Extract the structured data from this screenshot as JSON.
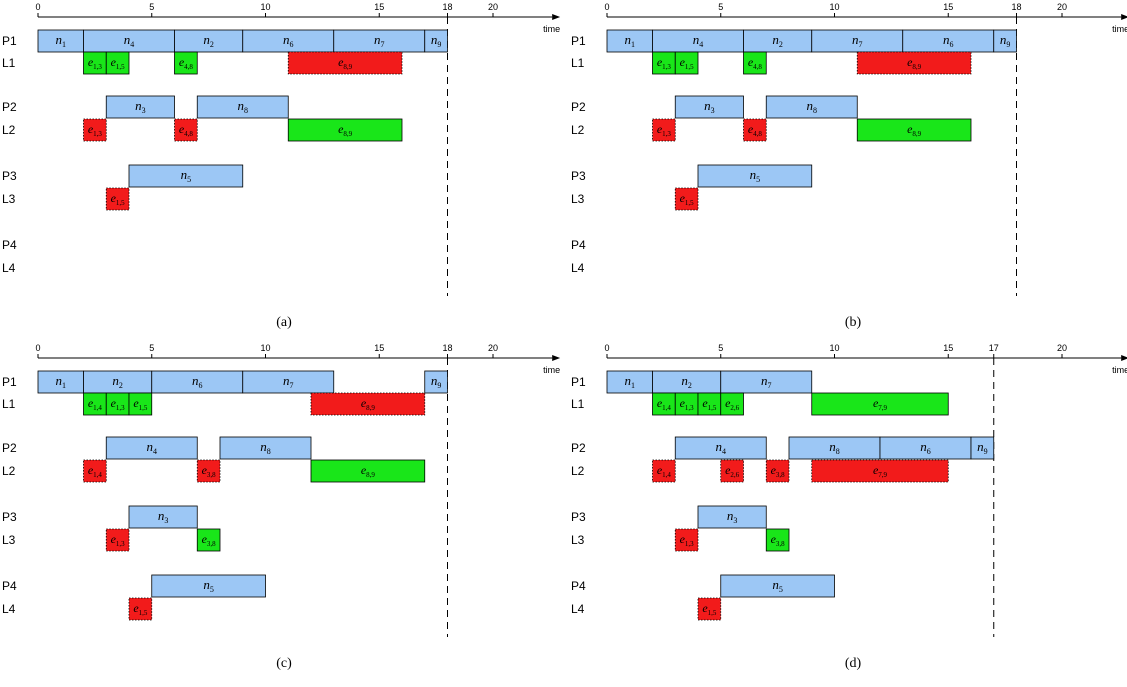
{
  "axis_label": "time",
  "panels": [
    {
      "caption": "(a)",
      "ticks": [
        0,
        5,
        10,
        15,
        18,
        20
      ],
      "makespan": 18,
      "rows": [
        {
          "id": "P1",
          "label": "P1",
          "kind": "proc",
          "tasks": [
            {
              "s": 0,
              "e": 2,
              "base": "n",
              "sub": "1"
            },
            {
              "s": 2,
              "e": 6,
              "base": "n",
              "sub": "4"
            },
            {
              "s": 6,
              "e": 9,
              "base": "n",
              "sub": "2"
            },
            {
              "s": 9,
              "e": 13,
              "base": "n",
              "sub": "6"
            },
            {
              "s": 13,
              "e": 17,
              "base": "n",
              "sub": "7"
            },
            {
              "s": 17,
              "e": 18,
              "base": "n",
              "sub": "9"
            }
          ]
        },
        {
          "id": "L1",
          "label": "L1",
          "kind": "link",
          "tasks": [
            {
              "s": 2,
              "e": 3,
              "base": "e",
              "sub": "1,3",
              "status": "send"
            },
            {
              "s": 3,
              "e": 4,
              "base": "e",
              "sub": "1,5",
              "status": "send"
            },
            {
              "s": 6,
              "e": 7,
              "base": "e",
              "sub": "4,8",
              "status": "send"
            },
            {
              "s": 11,
              "e": 16,
              "base": "e",
              "sub": "8,9",
              "status": "recv"
            }
          ]
        },
        {
          "id": "P2",
          "label": "P2",
          "kind": "proc",
          "tasks": [
            {
              "s": 3,
              "e": 6,
              "base": "n",
              "sub": "3"
            },
            {
              "s": 7,
              "e": 11,
              "base": "n",
              "sub": "8"
            }
          ]
        },
        {
          "id": "L2",
          "label": "L2",
          "kind": "link",
          "tasks": [
            {
              "s": 2,
              "e": 3,
              "base": "e",
              "sub": "1,3",
              "status": "recv"
            },
            {
              "s": 6,
              "e": 7,
              "base": "e",
              "sub": "4,8",
              "status": "recv"
            },
            {
              "s": 11,
              "e": 16,
              "base": "e",
              "sub": "8,9",
              "status": "send"
            }
          ]
        },
        {
          "id": "P3",
          "label": "P3",
          "kind": "proc",
          "tasks": [
            {
              "s": 4,
              "e": 9,
              "base": "n",
              "sub": "5"
            }
          ]
        },
        {
          "id": "L3",
          "label": "L3",
          "kind": "link",
          "tasks": [
            {
              "s": 3,
              "e": 4,
              "base": "e",
              "sub": "1,5",
              "status": "recv"
            }
          ]
        },
        {
          "id": "P4",
          "label": "P4",
          "kind": "proc",
          "tasks": []
        },
        {
          "id": "L4",
          "label": "L4",
          "kind": "link",
          "tasks": []
        }
      ]
    },
    {
      "caption": "(b)",
      "ticks": [
        0,
        5,
        10,
        15,
        18,
        20
      ],
      "makespan": 18,
      "rows": [
        {
          "id": "P1",
          "label": "P1",
          "kind": "proc",
          "tasks": [
            {
              "s": 0,
              "e": 2,
              "base": "n",
              "sub": "1"
            },
            {
              "s": 2,
              "e": 6,
              "base": "n",
              "sub": "4"
            },
            {
              "s": 6,
              "e": 9,
              "base": "n",
              "sub": "2"
            },
            {
              "s": 9,
              "e": 13,
              "base": "n",
              "sub": "7"
            },
            {
              "s": 13,
              "e": 17,
              "base": "n",
              "sub": "6"
            },
            {
              "s": 17,
              "e": 18,
              "base": "n",
              "sub": "9"
            }
          ]
        },
        {
          "id": "L1",
          "label": "L1",
          "kind": "link",
          "tasks": [
            {
              "s": 2,
              "e": 3,
              "base": "e",
              "sub": "1,3",
              "status": "send"
            },
            {
              "s": 3,
              "e": 4,
              "base": "e",
              "sub": "1,5",
              "status": "send"
            },
            {
              "s": 6,
              "e": 7,
              "base": "e",
              "sub": "4,8",
              "status": "send"
            },
            {
              "s": 11,
              "e": 16,
              "base": "e",
              "sub": "8,9",
              "status": "recv"
            }
          ]
        },
        {
          "id": "P2",
          "label": "P2",
          "kind": "proc",
          "tasks": [
            {
              "s": 3,
              "e": 6,
              "base": "n",
              "sub": "3"
            },
            {
              "s": 7,
              "e": 11,
              "base": "n",
              "sub": "8"
            }
          ]
        },
        {
          "id": "L2",
          "label": "L2",
          "kind": "link",
          "tasks": [
            {
              "s": 2,
              "e": 3,
              "base": "e",
              "sub": "1,3",
              "status": "recv"
            },
            {
              "s": 6,
              "e": 7,
              "base": "e",
              "sub": "4,8",
              "status": "recv"
            },
            {
              "s": 11,
              "e": 16,
              "base": "e",
              "sub": "8,9",
              "status": "send"
            }
          ]
        },
        {
          "id": "P3",
          "label": "P3",
          "kind": "proc",
          "tasks": [
            {
              "s": 4,
              "e": 9,
              "base": "n",
              "sub": "5"
            }
          ]
        },
        {
          "id": "L3",
          "label": "L3",
          "kind": "link",
          "tasks": [
            {
              "s": 3,
              "e": 4,
              "base": "e",
              "sub": "1,5",
              "status": "recv"
            }
          ]
        },
        {
          "id": "P4",
          "label": "P4",
          "kind": "proc",
          "tasks": []
        },
        {
          "id": "L4",
          "label": "L4",
          "kind": "link",
          "tasks": []
        }
      ]
    },
    {
      "caption": "(c)",
      "ticks": [
        0,
        5,
        10,
        15,
        18,
        20
      ],
      "makespan": 18,
      "rows": [
        {
          "id": "P1",
          "label": "P1",
          "kind": "proc",
          "tasks": [
            {
              "s": 0,
              "e": 2,
              "base": "n",
              "sub": "1"
            },
            {
              "s": 2,
              "e": 5,
              "base": "n",
              "sub": "2"
            },
            {
              "s": 5,
              "e": 9,
              "base": "n",
              "sub": "6"
            },
            {
              "s": 9,
              "e": 13,
              "base": "n",
              "sub": "7"
            },
            {
              "s": 17,
              "e": 18,
              "base": "n",
              "sub": "9"
            }
          ]
        },
        {
          "id": "L1",
          "label": "L1",
          "kind": "link",
          "tasks": [
            {
              "s": 2,
              "e": 3,
              "base": "e",
              "sub": "1,4",
              "status": "send"
            },
            {
              "s": 3,
              "e": 4,
              "base": "e",
              "sub": "1,3",
              "status": "send"
            },
            {
              "s": 4,
              "e": 5,
              "base": "e",
              "sub": "1,5",
              "status": "send"
            },
            {
              "s": 12,
              "e": 17,
              "base": "e",
              "sub": "8,9",
              "status": "recv"
            }
          ]
        },
        {
          "id": "P2",
          "label": "P2",
          "kind": "proc",
          "tasks": [
            {
              "s": 3,
              "e": 7,
              "base": "n",
              "sub": "4"
            },
            {
              "s": 8,
              "e": 12,
              "base": "n",
              "sub": "8"
            }
          ]
        },
        {
          "id": "L2",
          "label": "L2",
          "kind": "link",
          "tasks": [
            {
              "s": 2,
              "e": 3,
              "base": "e",
              "sub": "1,4",
              "status": "recv"
            },
            {
              "s": 7,
              "e": 8,
              "base": "e",
              "sub": "3,8",
              "status": "recv"
            },
            {
              "s": 12,
              "e": 17,
              "base": "e",
              "sub": "8,9",
              "status": "send"
            }
          ]
        },
        {
          "id": "P3",
          "label": "P3",
          "kind": "proc",
          "tasks": [
            {
              "s": 4,
              "e": 7,
              "base": "n",
              "sub": "3"
            }
          ]
        },
        {
          "id": "L3",
          "label": "L3",
          "kind": "link",
          "tasks": [
            {
              "s": 3,
              "e": 4,
              "base": "e",
              "sub": "1,3",
              "status": "recv"
            },
            {
              "s": 7,
              "e": 8,
              "base": "e",
              "sub": "3,8",
              "status": "send"
            }
          ]
        },
        {
          "id": "P4",
          "label": "P4",
          "kind": "proc",
          "tasks": [
            {
              "s": 5,
              "e": 10,
              "base": "n",
              "sub": "5"
            }
          ]
        },
        {
          "id": "L4",
          "label": "L4",
          "kind": "link",
          "tasks": [
            {
              "s": 4,
              "e": 5,
              "base": "e",
              "sub": "1,5",
              "status": "recv"
            }
          ]
        }
      ]
    },
    {
      "caption": "(d)",
      "ticks": [
        0,
        5,
        10,
        15,
        17,
        20
      ],
      "makespan": 17,
      "rows": [
        {
          "id": "P1",
          "label": "P1",
          "kind": "proc",
          "tasks": [
            {
              "s": 0,
              "e": 2,
              "base": "n",
              "sub": "1"
            },
            {
              "s": 2,
              "e": 5,
              "base": "n",
              "sub": "2"
            },
            {
              "s": 5,
              "e": 9,
              "base": "n",
              "sub": "7"
            }
          ]
        },
        {
          "id": "L1",
          "label": "L1",
          "kind": "link",
          "tasks": [
            {
              "s": 2,
              "e": 3,
              "base": "e",
              "sub": "1,4",
              "status": "send"
            },
            {
              "s": 3,
              "e": 4,
              "base": "e",
              "sub": "1,3",
              "status": "send"
            },
            {
              "s": 4,
              "e": 5,
              "base": "e",
              "sub": "1,5",
              "status": "send"
            },
            {
              "s": 5,
              "e": 6,
              "base": "e",
              "sub": "2,6",
              "status": "send"
            },
            {
              "s": 9,
              "e": 15,
              "base": "e",
              "sub": "7,9",
              "status": "send"
            }
          ]
        },
        {
          "id": "P2",
          "label": "P2",
          "kind": "proc",
          "tasks": [
            {
              "s": 3,
              "e": 7,
              "base": "n",
              "sub": "4"
            },
            {
              "s": 8,
              "e": 12,
              "base": "n",
              "sub": "8"
            },
            {
              "s": 12,
              "e": 16,
              "base": "n",
              "sub": "6"
            },
            {
              "s": 16,
              "e": 17,
              "base": "n",
              "sub": "9"
            }
          ]
        },
        {
          "id": "L2",
          "label": "L2",
          "kind": "link",
          "tasks": [
            {
              "s": 2,
              "e": 3,
              "base": "e",
              "sub": "1,4",
              "status": "recv"
            },
            {
              "s": 5,
              "e": 6,
              "base": "e",
              "sub": "2,6",
              "status": "recv"
            },
            {
              "s": 7,
              "e": 8,
              "base": "e",
              "sub": "3,8",
              "status": "recv"
            },
            {
              "s": 9,
              "e": 15,
              "base": "e",
              "sub": "7,9",
              "status": "recv"
            }
          ]
        },
        {
          "id": "P3",
          "label": "P3",
          "kind": "proc",
          "tasks": [
            {
              "s": 4,
              "e": 7,
              "base": "n",
              "sub": "3"
            }
          ]
        },
        {
          "id": "L3",
          "label": "L3",
          "kind": "link",
          "tasks": [
            {
              "s": 3,
              "e": 4,
              "base": "e",
              "sub": "1,3",
              "status": "recv"
            },
            {
              "s": 7,
              "e": 8,
              "base": "e",
              "sub": "3,8",
              "status": "send"
            }
          ]
        },
        {
          "id": "P4",
          "label": "P4",
          "kind": "proc",
          "tasks": [
            {
              "s": 5,
              "e": 10,
              "base": "n",
              "sub": "5"
            }
          ]
        },
        {
          "id": "L4",
          "label": "L4",
          "kind": "link",
          "tasks": [
            {
              "s": 4,
              "e": 5,
              "base": "e",
              "sub": "1,5",
              "status": "recv"
            }
          ]
        }
      ]
    }
  ],
  "colors": {
    "node_fill": "#9cc7f5",
    "send_fill": "#19e619",
    "recv_fill": "#f21b1b",
    "stroke": "#000000"
  }
}
